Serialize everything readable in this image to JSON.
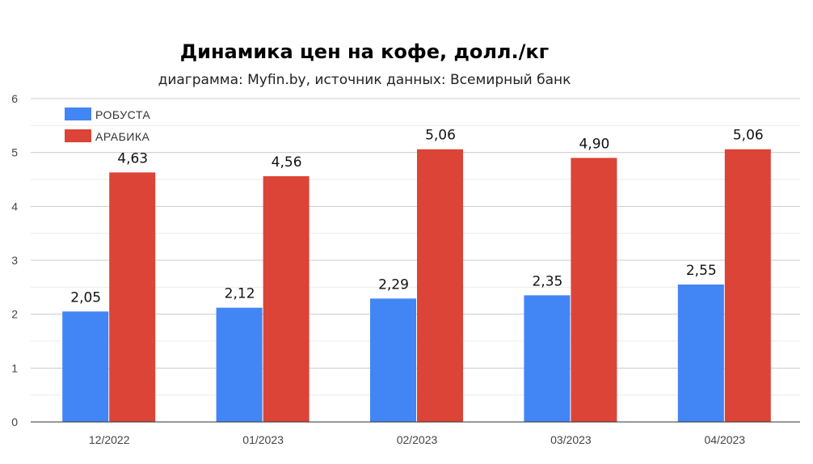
{
  "chart_data": {
    "type": "bar",
    "title": "Динамика цен на кофе, долл./кг",
    "subtitle": "диаграмма: Myfin.by, источник данных: Всемирный банк",
    "xlabel": "",
    "ylabel": "",
    "categories": [
      "12/2022",
      "01/2023",
      "02/2023",
      "03/2023",
      "04/2023"
    ],
    "series": [
      {
        "name": "РОБУСТА",
        "color": "#4285f4",
        "values": [
          2.05,
          2.12,
          2.29,
          2.35,
          2.55
        ],
        "labels": [
          "2,05",
          "2,12",
          "2,29",
          "2,35",
          "2,55"
        ]
      },
      {
        "name": "АРАБИКА",
        "color": "#db4437",
        "values": [
          4.63,
          4.56,
          5.06,
          4.9,
          5.06
        ],
        "labels": [
          "4,63",
          "4,56",
          "5,06",
          "4,90",
          "5,06"
        ]
      }
    ],
    "ylim": [
      0,
      6
    ],
    "yticks": [
      "0",
      "1",
      "2",
      "3",
      "4",
      "5",
      "6"
    ],
    "grid": true,
    "legend": "top-left"
  }
}
